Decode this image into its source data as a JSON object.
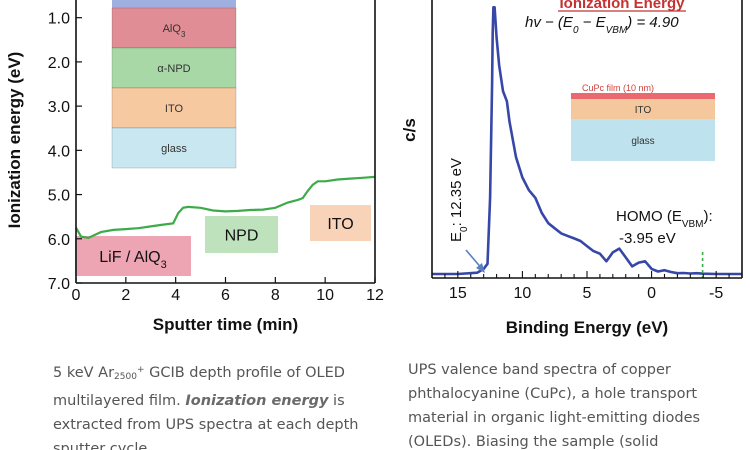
{
  "chart_data": [
    {
      "type": "line",
      "title": "",
      "xlabel": "Sputter time (min)",
      "ylabel": "Ionization energy (eV)",
      "xlim": [
        0,
        12
      ],
      "ylim": [
        7.0,
        0.6
      ],
      "y_inverted": true,
      "x_ticks": [
        "0",
        "2",
        "4",
        "6",
        "8",
        "10",
        "12"
      ],
      "y_ticks": [
        "1.0",
        "2.0",
        "3.0",
        "4.0",
        "5.0",
        "6.0",
        "7.0"
      ],
      "legend": "none",
      "grid": false,
      "series_color": "#3cab4a",
      "x": [
        0.0,
        0.2,
        0.5,
        0.8,
        1.0,
        1.5,
        2.0,
        2.5,
        3.0,
        3.5,
        3.9,
        4.1,
        4.3,
        4.5,
        5.0,
        5.5,
        6.0,
        6.5,
        7.0,
        7.5,
        8.0,
        8.5,
        8.9,
        9.1,
        9.3,
        9.5,
        9.7,
        10.0,
        10.5,
        11.0,
        11.5,
        12.0
      ],
      "y": [
        5.75,
        5.95,
        5.98,
        5.9,
        5.85,
        5.8,
        5.78,
        5.76,
        5.72,
        5.68,
        5.65,
        5.42,
        5.3,
        5.28,
        5.3,
        5.36,
        5.38,
        5.37,
        5.35,
        5.34,
        5.3,
        5.18,
        5.12,
        5.08,
        4.92,
        4.78,
        4.7,
        4.7,
        4.66,
        4.64,
        4.62,
        4.6
      ],
      "layer_stack": [
        {
          "label": "AlQ",
          "sub": "3",
          "color": "#e08d95"
        },
        {
          "label": "α-NPD",
          "sub": "",
          "color": "#a8d8a6"
        },
        {
          "label": "ITO",
          "sub": "",
          "color": "#f7c9a0"
        },
        {
          "label": "glass",
          "sub": "",
          "color": "#c9e7f0"
        }
      ],
      "region_labels": [
        {
          "text": "LiF / AlQ",
          "sub": "3",
          "color": "#ea8ea0"
        },
        {
          "text": "NPD",
          "sub": "",
          "color": "#aedcab"
        },
        {
          "text": "ITO",
          "sub": "",
          "color": "#f8c8a5"
        }
      ]
    },
    {
      "type": "line",
      "title": "Ionization Energy",
      "xlabel": "Binding Energy (eV)",
      "ylabel": "c/s",
      "xlim": [
        17,
        -7
      ],
      "x_inverted": true,
      "x_ticks": [
        "15",
        "10",
        "5",
        "0",
        "-5"
      ],
      "legend": "none",
      "grid": false,
      "series_color": "#3747a8",
      "x": [
        17,
        15,
        13.5,
        13,
        12.7,
        12.5,
        12.35,
        12.3,
        12.25,
        12.15,
        12.0,
        11.8,
        11.5,
        11.2,
        11.0,
        10.5,
        10.0,
        9.5,
        9.0,
        8.5,
        8.0,
        7.5,
        7.0,
        6.5,
        6.0,
        5.5,
        5.0,
        4.5,
        4.0,
        3.5,
        3.0,
        2.5,
        2.0,
        1.5,
        1.0,
        0.5,
        0.0,
        -0.5,
        -1.0,
        -1.5,
        -2.0,
        -2.5,
        -3.0,
        -3.5,
        -4.0,
        -5.0,
        -6.0,
        -7.0
      ],
      "y": [
        0.0,
        0.0,
        0.005,
        0.02,
        0.04,
        0.3,
        0.75,
        0.95,
        1.05,
        1.05,
        0.93,
        0.82,
        0.72,
        0.68,
        0.6,
        0.46,
        0.38,
        0.33,
        0.3,
        0.24,
        0.2,
        0.18,
        0.16,
        0.15,
        0.14,
        0.13,
        0.11,
        0.09,
        0.08,
        0.05,
        0.085,
        0.1,
        0.065,
        0.03,
        0.045,
        0.05,
        0.02,
        0.01,
        0.015,
        0.008,
        0.003,
        0.004,
        0.002,
        0.003,
        0.001,
        0.0,
        0.0,
        0.0
      ],
      "annotations": {
        "ie_line1": "hv − (E",
        "ie_sub_0": "0",
        "ie_mid": " − E",
        "ie_sub_vbm": "VBM",
        "ie_end": ") = 4.90",
        "e0_text": "E",
        "e0_sub": "0",
        "e0_value": ": 12.35 eV",
        "homo_text": "HOMO (E",
        "homo_sub": "VBM",
        "homo_close": "):",
        "homo_value": "-3.95 eV"
      },
      "inset": [
        {
          "label": "CuPc film (10 nm)",
          "color": "#e9696f"
        },
        {
          "label": "ITO",
          "color": "#f5c79c"
        },
        {
          "label": "glass",
          "color": "#bfe3ee"
        }
      ]
    }
  ],
  "captions": {
    "left": {
      "t1": "5 keV Ar",
      "sub": "2500",
      "sup": "+",
      "t2": " GCIB depth profile of OLED multilayered film. ",
      "emph": "Ionization energy",
      "t3": " is extracted from UPS spectra at each depth sputter cycle."
    },
    "right": {
      "text": "UPS valence band spectra of copper phthalocyanine (CuPc), a hole transport material in organic light-emitting diodes (OLEDs). Biasing the sample (solid"
    }
  }
}
